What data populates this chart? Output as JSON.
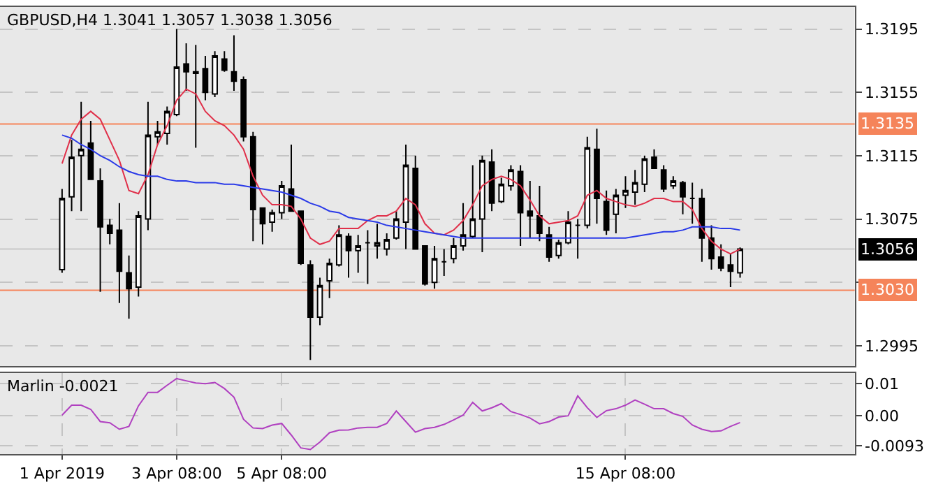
{
  "chart_data": [
    {
      "type": "candlestick",
      "title": "GBPUSD,H4 1.3041 1.3057 1.3038 1.3056",
      "categories": [
        null,
        null,
        null,
        null,
        null,
        null,
        null,
        null,
        null,
        null,
        null,
        null,
        null,
        null,
        null,
        null,
        null,
        null,
        null,
        null,
        null,
        null,
        null,
        null,
        null,
        null,
        null,
        null,
        null,
        null,
        null,
        null,
        null,
        null,
        null,
        null,
        null,
        null,
        null,
        null,
        null,
        null,
        null,
        null,
        null,
        null,
        null,
        null,
        null,
        null,
        null,
        null,
        null,
        null,
        null,
        null,
        null,
        null,
        null,
        null,
        null,
        null,
        null,
        null,
        null,
        null,
        null,
        null,
        null,
        null,
        null,
        null
      ],
      "ohlc": [
        [
          1.3043,
          1.3094,
          1.3041,
          1.3088
        ],
        [
          1.3089,
          1.3125,
          1.308,
          1.3114
        ],
        [
          1.3115,
          1.3149,
          1.308,
          1.3119
        ],
        [
          1.3123,
          1.3137,
          1.31,
          1.31
        ],
        [
          1.3099,
          1.3107,
          1.3029,
          1.307
        ],
        [
          1.3071,
          1.3075,
          1.3059,
          1.3066
        ],
        [
          1.3068,
          1.3085,
          1.3022,
          1.3042
        ],
        [
          1.3041,
          1.3052,
          1.3012,
          1.3031
        ],
        [
          1.3032,
          1.308,
          1.3026,
          1.3077
        ],
        [
          1.3075,
          1.3149,
          1.3068,
          1.3128
        ],
        [
          1.3127,
          1.3137,
          1.3122,
          1.313
        ],
        [
          1.3129,
          1.3146,
          1.3122,
          1.3143
        ],
        [
          1.3141,
          1.3195,
          1.314,
          1.3171
        ],
        [
          1.3173,
          1.3186,
          1.3156,
          1.3168
        ],
        [
          1.3167,
          1.3185,
          1.312,
          1.3168
        ],
        [
          1.317,
          1.3178,
          1.315,
          1.3155
        ],
        [
          1.3154,
          1.3181,
          1.3152,
          1.3178
        ],
        [
          1.3176,
          1.3181,
          1.3168,
          1.3169
        ],
        [
          1.3168,
          1.3191,
          1.3156,
          1.3162
        ],
        [
          1.3163,
          1.3165,
          1.3124,
          1.3127
        ],
        [
          1.3127,
          1.313,
          1.3061,
          1.3081
        ],
        [
          1.3082,
          1.3082,
          1.3059,
          1.3072
        ],
        [
          1.3073,
          1.3081,
          1.3067,
          1.3079
        ],
        [
          1.3079,
          1.3099,
          1.3075,
          1.3096
        ],
        [
          1.3094,
          1.3122,
          1.308,
          1.308
        ],
        [
          1.308,
          1.308,
          1.3046,
          1.3047
        ],
        [
          1.3046,
          1.3049,
          1.2986,
          1.3013
        ],
        [
          1.3013,
          1.3038,
          1.3008,
          1.3033
        ],
        [
          1.3036,
          1.305,
          1.3025,
          1.3047
        ],
        [
          1.3046,
          1.3071,
          1.3045,
          1.3065
        ],
        [
          1.3064,
          1.3066,
          1.3038,
          1.3055
        ],
        [
          1.3055,
          1.3065,
          1.3041,
          1.3058
        ],
        [
          1.306,
          1.3068,
          1.3034,
          1.306
        ],
        [
          1.3058,
          1.3072,
          1.305,
          1.306
        ],
        [
          1.3056,
          1.3066,
          1.3052,
          1.3062
        ],
        [
          1.3063,
          1.308,
          1.3062,
          1.3075
        ],
        [
          1.3073,
          1.3122,
          1.3056,
          1.3109
        ],
        [
          1.3107,
          1.3115,
          1.3056,
          1.3056
        ],
        [
          1.3058,
          1.3058,
          1.3033,
          1.3034
        ],
        [
          1.3035,
          1.3058,
          1.3031,
          1.305
        ],
        [
          1.3048,
          1.3056,
          1.3039,
          1.3048
        ],
        [
          1.305,
          1.3063,
          1.3047,
          1.3058
        ],
        [
          1.3058,
          1.3085,
          1.3055,
          1.3065
        ],
        [
          1.3064,
          1.3109,
          1.3063,
          1.3075
        ],
        [
          1.3075,
          1.3115,
          1.3054,
          1.3112
        ],
        [
          1.3111,
          1.3119,
          1.308,
          1.3085
        ],
        [
          1.3086,
          1.3101,
          1.3085,
          1.3097
        ],
        [
          1.3096,
          1.3109,
          1.3093,
          1.3106
        ],
        [
          1.3105,
          1.3109,
          1.3058,
          1.3079
        ],
        [
          1.308,
          1.3099,
          1.3063,
          1.3077
        ],
        [
          1.3077,
          1.3096,
          1.3061,
          1.3066
        ],
        [
          1.3065,
          1.307,
          1.3048,
          1.3051
        ],
        [
          1.3052,
          1.3062,
          1.305,
          1.306
        ],
        [
          1.306,
          1.308,
          1.3059,
          1.3073
        ],
        [
          1.3071,
          1.3075,
          1.305,
          1.3071
        ],
        [
          1.3071,
          1.3127,
          1.3069,
          1.312
        ],
        [
          1.3119,
          1.3132,
          1.3072,
          1.3088
        ],
        [
          1.3086,
          1.3093,
          1.3065,
          1.3068
        ],
        [
          1.3078,
          1.3094,
          1.3066,
          1.309
        ],
        [
          1.309,
          1.3102,
          1.3082,
          1.3093
        ],
        [
          1.3092,
          1.3106,
          1.3084,
          1.3098
        ],
        [
          1.3097,
          1.3115,
          1.3092,
          1.3113
        ],
        [
          1.3114,
          1.3119,
          1.3107,
          1.3107
        ],
        [
          1.3106,
          1.3109,
          1.3092,
          1.3094
        ],
        [
          1.3096,
          1.3102,
          1.3094,
          1.3099
        ],
        [
          1.3098,
          1.3099,
          1.3078,
          1.3089
        ],
        [
          1.3088,
          1.3098,
          1.3072,
          1.3088
        ],
        [
          1.3088,
          1.3094,
          1.3048,
          1.3063
        ],
        [
          1.3063,
          1.3071,
          1.3043,
          1.305
        ],
        [
          1.3051,
          1.3059,
          1.3042,
          1.3044
        ],
        [
          1.3046,
          1.3053,
          1.3032,
          1.3042
        ],
        [
          1.3041,
          1.3057,
          1.3038,
          1.3056
        ]
      ],
      "series": [
        {
          "type": "line",
          "color": "#e0304a",
          "values": [
            1.311,
            1.3128,
            1.3138,
            1.3143,
            1.3138,
            1.3125,
            1.3112,
            1.3093,
            1.3091,
            1.3103,
            1.3122,
            1.3134,
            1.315,
            1.3157,
            1.3154,
            1.3143,
            1.3137,
            1.3134,
            1.3128,
            1.3119,
            1.3102,
            1.309,
            1.3084,
            1.3084,
            1.3083,
            1.3075,
            1.3063,
            1.3059,
            1.3061,
            1.3069,
            1.3069,
            1.3069,
            1.3074,
            1.3077,
            1.3077,
            1.308,
            1.3088,
            1.3084,
            1.3072,
            1.3066,
            1.3065,
            1.3068,
            1.3074,
            1.3084,
            1.3096,
            1.31,
            1.3102,
            1.31,
            1.3096,
            1.3087,
            1.3077,
            1.3072,
            1.3073,
            1.3074,
            1.3077,
            1.309,
            1.3093,
            1.3088,
            1.3086,
            1.3084,
            1.3083,
            1.3085,
            1.3088,
            1.3088,
            1.3086,
            1.3086,
            1.3081,
            1.3069,
            1.3061,
            1.3056,
            1.3053,
            1.3056
          ]
        },
        {
          "type": "line",
          "color": "#2a3ae8",
          "values": [
            1.3128,
            1.3126,
            1.3122,
            1.3119,
            1.3115,
            1.3112,
            1.3108,
            1.3105,
            1.3103,
            1.3102,
            1.3102,
            1.31,
            1.3099,
            1.3099,
            1.3098,
            1.3098,
            1.3098,
            1.3097,
            1.3097,
            1.3096,
            1.3095,
            1.3094,
            1.3093,
            1.3092,
            1.309,
            1.3088,
            1.3085,
            1.3083,
            1.308,
            1.3079,
            1.3076,
            1.3075,
            1.3074,
            1.3073,
            1.3071,
            1.307,
            1.3069,
            1.3068,
            1.3067,
            1.3066,
            1.3065,
            1.3064,
            1.3063,
            1.3063,
            1.3063,
            1.3063,
            1.3063,
            1.3063,
            1.3063,
            1.3063,
            1.3063,
            1.3063,
            1.3063,
            1.3063,
            1.3063,
            1.3063,
            1.3063,
            1.3063,
            1.3063,
            1.3063,
            1.3064,
            1.3065,
            1.3066,
            1.3067,
            1.3067,
            1.3068,
            1.307,
            1.307,
            1.307,
            1.3069,
            1.3069,
            1.3068
          ]
        }
      ],
      "ylim": [
        1.2982,
        1.3209
      ],
      "yticks": [
        1.3195,
        1.3155,
        1.3115,
        1.3075,
        {
          "value": 1.3035,
          "label": null
        },
        1.2995
      ],
      "ref_lines": [
        {
          "axis": "y",
          "value": 1.3135,
          "label": "1.3135",
          "color": "#f5845a"
        },
        {
          "axis": "y",
          "value": 1.303,
          "label": "1.3030",
          "color": "#f5845a"
        },
        {
          "axis": "y",
          "value": 1.3056,
          "label": "1.3056",
          "color": "#c8c8c8"
        }
      ],
      "grid": true,
      "tick_labels": "y"
    },
    {
      "type": "line",
      "title": "Marlin -0.0021",
      "categories": [
        "1 Apr 2019",
        null,
        null,
        null,
        null,
        null,
        null,
        null,
        null,
        null,
        null,
        null,
        "3 Apr 08:00",
        null,
        null,
        null,
        null,
        null,
        null,
        null,
        null,
        null,
        null,
        "5 Apr 08:00",
        null,
        null,
        null,
        null,
        null,
        null,
        null,
        null,
        null,
        null,
        null,
        null,
        null,
        null,
        null,
        null,
        null,
        null,
        null,
        null,
        null,
        null,
        null,
        null,
        null,
        null,
        null,
        null,
        null,
        null,
        null,
        null,
        null,
        null,
        null,
        "15 Apr 08:00",
        null,
        null,
        null,
        null,
        null,
        null,
        null,
        null,
        null,
        null,
        null,
        null
      ],
      "series": [
        {
          "color": "#b040c0",
          "values": [
            0.0002,
            0.0033,
            0.0033,
            0.002,
            -0.0018,
            -0.0022,
            -0.0042,
            -0.0033,
            0.0031,
            0.0073,
            0.0073,
            0.0095,
            0.0116,
            0.0109,
            0.0102,
            0.01,
            0.0104,
            0.0085,
            0.0058,
            -0.0011,
            -0.0038,
            -0.004,
            -0.0029,
            -0.0024,
            -0.006,
            -0.01,
            -0.0105,
            -0.0082,
            -0.0053,
            -0.0045,
            -0.0044,
            -0.0038,
            -0.0036,
            -0.0036,
            -0.0024,
            0.0015,
            -0.0018,
            -0.0051,
            -0.004,
            -0.0036,
            -0.0027,
            -0.0013,
            0.0002,
            0.0042,
            0.0015,
            0.0025,
            0.0038,
            0.0013,
            0.0004,
            -0.0007,
            -0.0025,
            -0.0018,
            -0.0004,
            0.0,
            0.0062,
            0.0025,
            -0.0005,
            0.0016,
            0.0022,
            0.0033,
            0.0049,
            0.0036,
            0.0022,
            0.0022,
            0.0007,
            -0.0002,
            -0.0029,
            -0.0042,
            -0.0049,
            -0.0047,
            -0.0033,
            -0.0021
          ]
        }
      ],
      "ylim": [
        -0.012,
        0.0133
      ],
      "yticks": [
        0.01,
        {
          "value": 0,
          "label": "0.00"
        },
        -0.0093
      ],
      "grid": true
    }
  ]
}
